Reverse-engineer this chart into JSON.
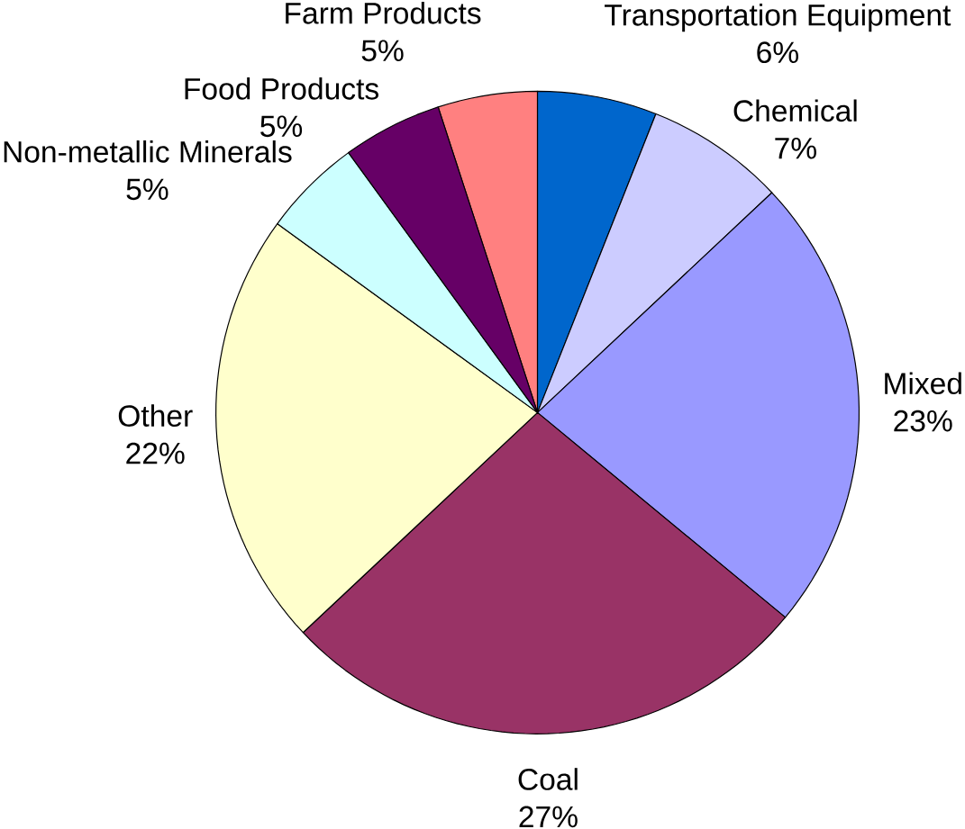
{
  "chart_data": {
    "type": "pie",
    "categories": [
      "Farm Products",
      "Transportation Equipment",
      "Chemical",
      "Mixed",
      "Coal",
      "Other",
      "Non-metallic Minerals",
      "Food Products"
    ],
    "values": [
      5,
      6,
      7,
      23,
      27,
      22,
      5,
      5
    ],
    "value_labels": [
      "5%",
      "6%",
      "7%",
      "23%",
      "27%",
      "22%",
      "5%",
      "5%"
    ],
    "colors": [
      "#ff8080",
      "#0066cc",
      "#ccccff",
      "#9999ff",
      "#993366",
      "#ffffcc",
      "#ccffff",
      "#660066"
    ]
  }
}
